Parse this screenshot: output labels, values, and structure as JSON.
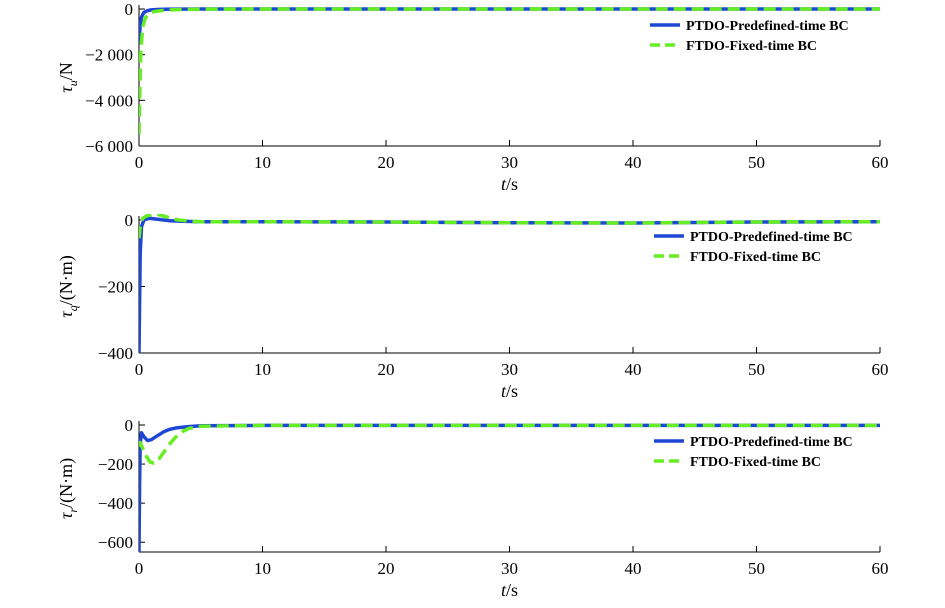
{
  "colors": {
    "ptdo": "#1f47d6",
    "ftdo": "#66ee22",
    "axis": "#000000",
    "background": "#ffffff"
  },
  "chart_data": [
    {
      "type": "line",
      "xlabel": {
        "italic": "t",
        "rest": "/s"
      },
      "ylabel": {
        "symbol": "τ",
        "sub": "u",
        "rest": "/N"
      },
      "xlim": [
        0,
        60
      ],
      "ylim": [
        -6000,
        0
      ],
      "xticks": [
        0,
        10,
        20,
        30,
        40,
        50,
        60
      ],
      "xtick_labels": [
        "0",
        "10",
        "20",
        "30",
        "40",
        "50",
        "60"
      ],
      "yticks": [
        0,
        -2000,
        -4000,
        -6000
      ],
      "ytick_labels": [
        "0",
        "−2 000",
        "−4 000",
        "−6 000"
      ],
      "grid": false,
      "legend_position": "top-right",
      "series": [
        {
          "name": "PTDO-Predefined-time BC",
          "style": "solid",
          "x": [
            0,
            0.05,
            0.1,
            0.2,
            0.4,
            0.7,
            1,
            1.5,
            2,
            3,
            5,
            10,
            20,
            30,
            40,
            50,
            60
          ],
          "y": [
            -1500,
            -1100,
            -700,
            -350,
            -150,
            -70,
            -40,
            -20,
            -10,
            -5,
            -2,
            0,
            0,
            0,
            0,
            0,
            0
          ]
        },
        {
          "name": "FTDO-Fixed-time BC",
          "style": "dashed",
          "x": [
            0,
            0.03,
            0.08,
            0.15,
            0.3,
            0.5,
            0.8,
            1.2,
            1.8,
            2.5,
            3.5,
            5,
            10,
            20,
            30,
            40,
            50,
            60
          ],
          "y": [
            -5500,
            -4600,
            -3200,
            -1800,
            -800,
            -400,
            -200,
            -120,
            -70,
            -40,
            -20,
            -8,
            0,
            0,
            0,
            0,
            0,
            0
          ]
        }
      ]
    },
    {
      "type": "line",
      "xlabel": {
        "italic": "t",
        "rest": "/s"
      },
      "ylabel": {
        "symbol": "τ",
        "sub": "q",
        "rest": "/(N·m)"
      },
      "xlim": [
        0,
        60
      ],
      "ylim": [
        -400,
        0
      ],
      "xticks": [
        0,
        10,
        20,
        30,
        40,
        50,
        60
      ],
      "xtick_labels": [
        "0",
        "10",
        "20",
        "30",
        "40",
        "50",
        "60"
      ],
      "yticks": [
        0,
        -200,
        -400
      ],
      "ytick_labels": [
        "0",
        "−200",
        "−400"
      ],
      "grid": false,
      "legend_position": "top-right",
      "series": [
        {
          "name": "PTDO-Predefined-time BC",
          "style": "solid",
          "x": [
            0,
            0.05,
            0.1,
            0.2,
            0.4,
            0.8,
            1.5,
            2.5,
            3.5,
            5,
            10,
            20,
            30,
            40,
            50,
            60
          ],
          "y": [
            -400,
            -250,
            -100,
            -20,
            0,
            5,
            2,
            -2,
            -4,
            -5,
            -5,
            -6,
            -8,
            -9,
            -6,
            -5
          ]
        },
        {
          "name": "FTDO-Fixed-time BC",
          "style": "dashed",
          "x": [
            0,
            0.1,
            0.3,
            0.6,
            1,
            1.4,
            2,
            2.6,
            3.2,
            4,
            5,
            10,
            20,
            30,
            40,
            50,
            60
          ],
          "y": [
            -55,
            -20,
            5,
            12,
            16,
            18,
            12,
            5,
            0,
            -3,
            -5,
            -5,
            -6,
            -8,
            -9,
            -6,
            -5
          ]
        }
      ]
    },
    {
      "type": "line",
      "xlabel": {
        "italic": "t",
        "rest": "/s"
      },
      "ylabel": {
        "symbol": "τ",
        "sub": "r",
        "rest": "/(N·m)"
      },
      "xlim": [
        0,
        60
      ],
      "ylim": [
        -650,
        0
      ],
      "xticks": [
        0,
        10,
        20,
        30,
        40,
        50,
        60
      ],
      "xtick_labels": [
        "0",
        "10",
        "20",
        "30",
        "40",
        "50",
        "60"
      ],
      "yticks": [
        0,
        -200,
        -400,
        -600
      ],
      "ytick_labels": [
        "0",
        "−200",
        "−400",
        "−600"
      ],
      "grid": false,
      "legend_position": "top-right",
      "series": [
        {
          "name": "PTDO-Predefined-time BC",
          "style": "solid",
          "x": [
            0,
            0.05,
            0.1,
            0.2,
            0.4,
            0.7,
            1,
            1.5,
            2,
            2.5,
            3,
            4,
            5,
            10,
            20,
            30,
            40,
            50,
            60
          ],
          "y": [
            -650,
            -300,
            -100,
            -40,
            -60,
            -80,
            -75,
            -55,
            -35,
            -22,
            -15,
            -8,
            -4,
            -2,
            -2,
            -2,
            -2,
            -2,
            -2
          ]
        },
        {
          "name": "FTDO-Fixed-time BC",
          "style": "dashed",
          "x": [
            0,
            0.1,
            0.3,
            0.6,
            0.9,
            1.2,
            1.6,
            2,
            2.5,
            3,
            3.5,
            4,
            5,
            10,
            20,
            30,
            40,
            50,
            60
          ],
          "y": [
            -110,
            -90,
            -120,
            -160,
            -190,
            -195,
            -175,
            -140,
            -95,
            -60,
            -35,
            -18,
            -6,
            -2,
            -2,
            -2,
            -2,
            -2,
            -2
          ]
        }
      ]
    }
  ]
}
